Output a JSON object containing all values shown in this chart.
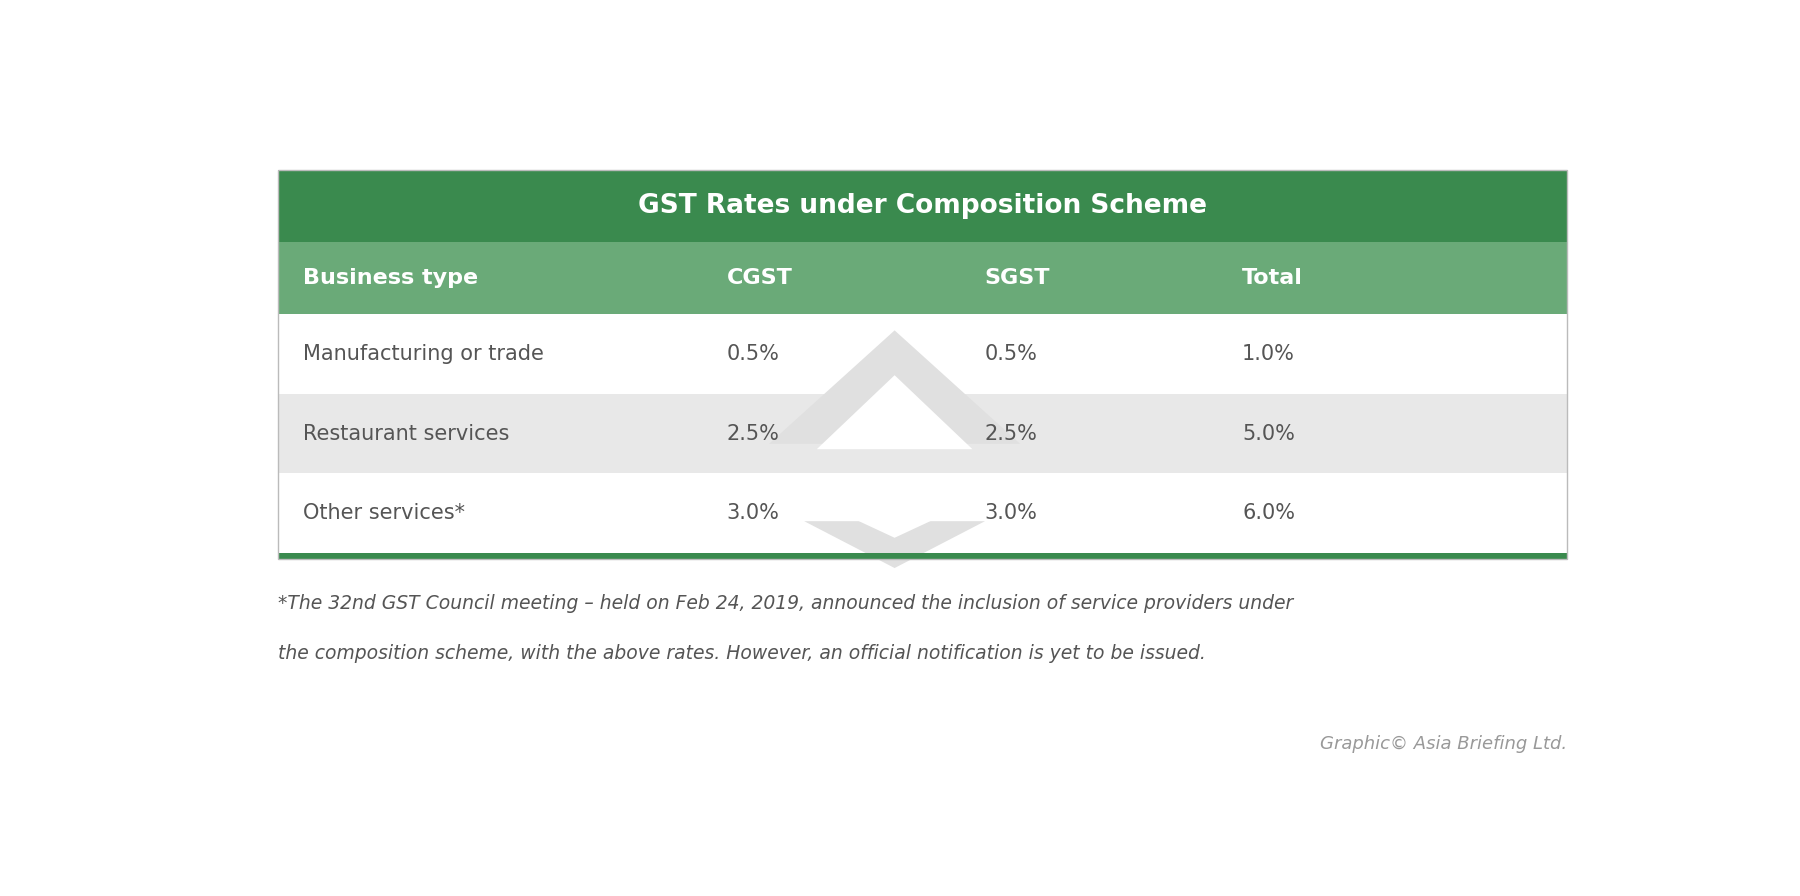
{
  "title": "GST Rates under Composition Scheme",
  "title_bg_color": "#3a8a4e",
  "title_text_color": "#ffffff",
  "header_bg_color": "#6aaa78",
  "header_text_color": "#ffffff",
  "columns": [
    "Business type",
    "CGST",
    "SGST",
    "Total"
  ],
  "rows": [
    [
      "Manufacturing or trade",
      "0.5%",
      "0.5%",
      "1.0%"
    ],
    [
      "Restaurant services",
      "2.5%",
      "2.5%",
      "5.0%"
    ],
    [
      "Other services*",
      "3.0%",
      "3.0%",
      "6.0%"
    ]
  ],
  "row_bg_colors": [
    "#ffffff",
    "#e8e8e8",
    "#ffffff"
  ],
  "data_text_color": "#555555",
  "footnote_line1": "*The 32nd GST Council meeting – held on Feb 24, 2019, announced the inclusion of service providers under",
  "footnote_line2": "the composition scheme, with the above rates. However, an official notification is yet to be issued.",
  "footnote_color": "#555555",
  "credit": "Graphic© Asia Briefing Ltd.",
  "credit_color": "#999999",
  "border_color": "#3a8a4e",
  "bg_color": "#ffffff",
  "outer_border_color": "#cccccc",
  "watermark_color": "#e0e0e0"
}
